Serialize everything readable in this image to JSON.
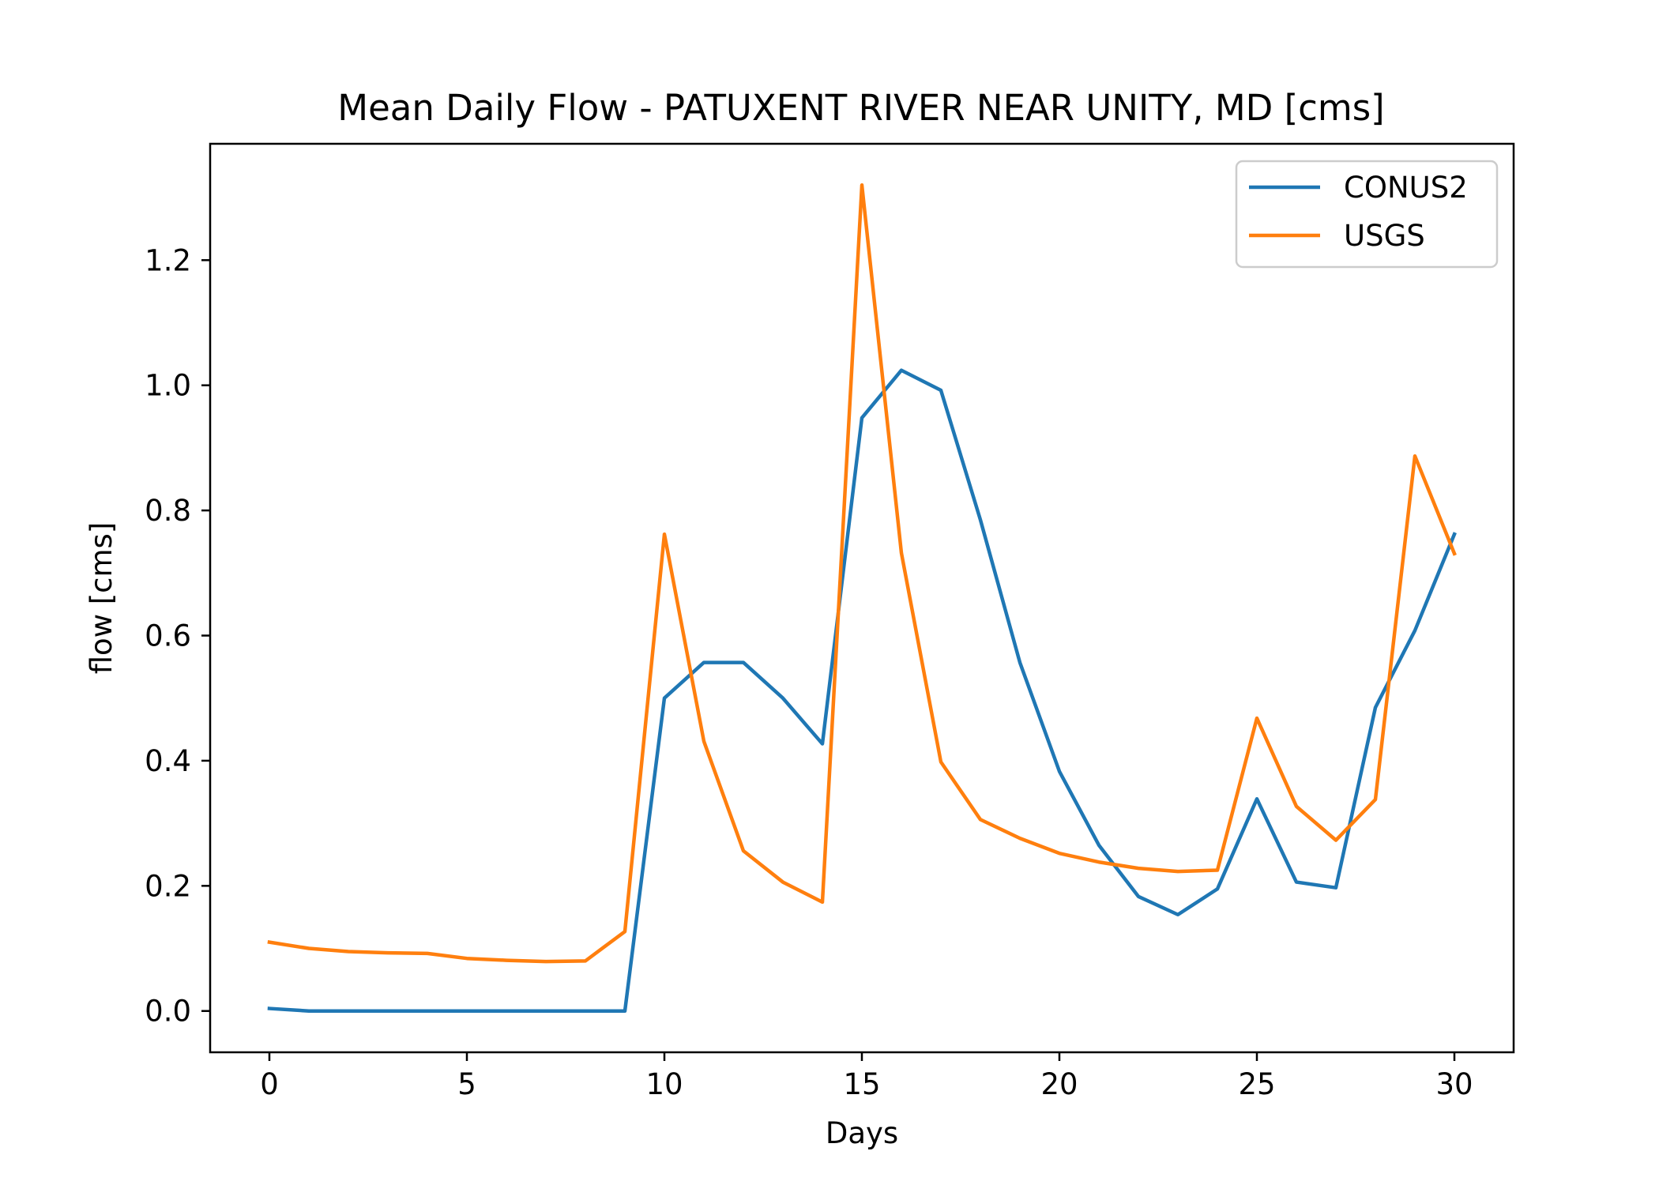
{
  "chart_data": {
    "type": "line",
    "title": "Mean Daily Flow - PATUXENT RIVER NEAR UNITY, MD [cms]",
    "xlabel": "Days",
    "ylabel": "flow [cms]",
    "xlim": [
      -1.5,
      31.5
    ],
    "ylim": [
      -0.066,
      1.386
    ],
    "xticks": [
      0,
      5,
      10,
      15,
      20,
      25,
      30
    ],
    "xtick_labels": [
      "0",
      "5",
      "10",
      "15",
      "20",
      "25",
      "30"
    ],
    "yticks": [
      0.0,
      0.2,
      0.4,
      0.6,
      0.8,
      1.0,
      1.2
    ],
    "ytick_labels": [
      "0.0",
      "0.2",
      "0.4",
      "0.6",
      "0.8",
      "1.0",
      "1.2"
    ],
    "grid": false,
    "legend_position": "top-right",
    "x": [
      0,
      1,
      2,
      3,
      4,
      5,
      6,
      7,
      8,
      9,
      10,
      11,
      12,
      13,
      14,
      15,
      16,
      17,
      18,
      19,
      20,
      21,
      22,
      23,
      24,
      25,
      26,
      27,
      28,
      29,
      30
    ],
    "series": [
      {
        "name": "CONUS2",
        "color": "#1f77b4",
        "values": [
          0.004,
          0.0,
          0.0,
          0.0,
          0.0,
          0.0,
          0.0,
          0.0,
          0.0,
          0.0,
          0.5,
          0.557,
          0.557,
          0.5,
          0.427,
          0.948,
          1.024,
          0.992,
          0.785,
          0.557,
          0.383,
          0.265,
          0.183,
          0.154,
          0.195,
          0.339,
          0.206,
          0.197,
          0.485,
          0.608,
          0.762
        ]
      },
      {
        "name": "USGS",
        "color": "#ff7f0e",
        "values": [
          0.11,
          0.1,
          0.095,
          0.093,
          0.092,
          0.084,
          0.081,
          0.079,
          0.08,
          0.127,
          0.762,
          0.431,
          0.256,
          0.206,
          0.174,
          1.32,
          0.732,
          0.398,
          0.306,
          0.276,
          0.252,
          0.238,
          0.228,
          0.223,
          0.225,
          0.468,
          0.327,
          0.273,
          0.338,
          0.887,
          0.731
        ]
      }
    ]
  }
}
